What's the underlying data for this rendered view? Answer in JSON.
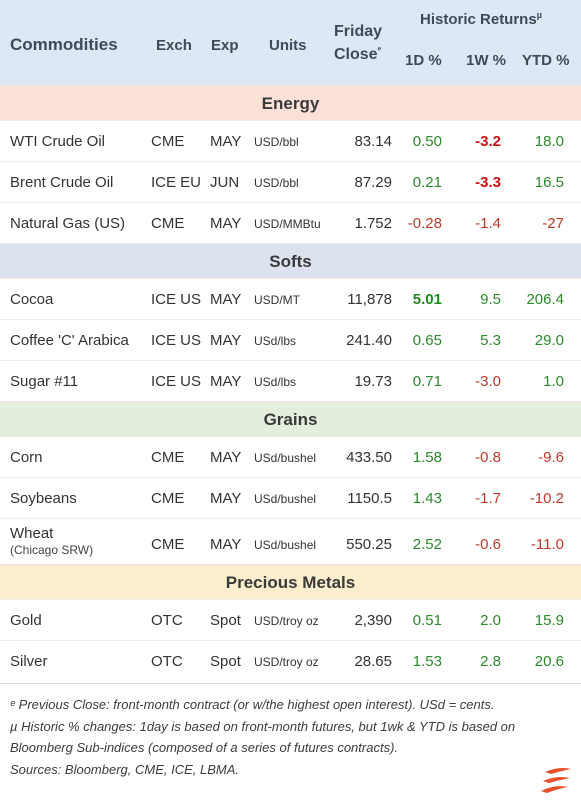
{
  "header": {
    "commodities": "Commodities",
    "exch": "Exch",
    "exp": "Exp",
    "units": "Units",
    "friday_line1": "Friday",
    "friday_line2": "Close",
    "friday_marker": "ᵉ",
    "historic": "Historic Returns",
    "historic_marker": "µ",
    "col_1d": "1D %",
    "col_1w": "1W %",
    "col_ytd": "YTD %"
  },
  "sections": [
    {
      "title": "Energy",
      "rows": [
        {
          "name": "WTI Crude Oil",
          "exch": "CME",
          "exp": "MAY",
          "units": "USD/bbl",
          "close": "83.14",
          "d1": "0.50",
          "w1": "-3.2",
          "ytd": "18.0"
        },
        {
          "name": "Brent Crude Oil",
          "exch": "ICE EU",
          "exp": "JUN",
          "units": "USD/bbl",
          "close": "87.29",
          "d1": "0.21",
          "w1": "-3.3",
          "ytd": "16.5"
        },
        {
          "name": "Natural Gas (US)",
          "exch": "CME",
          "exp": "MAY",
          "units": "USD/MMBtu",
          "close": "1.752",
          "d1": "-0.28",
          "w1": "-1.4",
          "ytd": "-27"
        }
      ]
    },
    {
      "title": "Softs",
      "rows": [
        {
          "name": "Cocoa",
          "exch": "ICE US",
          "exp": "MAY",
          "units": "USD/MT",
          "close": "11,878",
          "d1": "5.01",
          "w1": "9.5",
          "ytd": "206.4"
        },
        {
          "name": "Coffee 'C' Arabica",
          "exch": "ICE US",
          "exp": "MAY",
          "units": "USd/lbs",
          "close": "241.40",
          "d1": "0.65",
          "w1": "5.3",
          "ytd": "29.0"
        },
        {
          "name": "Sugar #11",
          "exch": "ICE US",
          "exp": "MAY",
          "units": "USd/lbs",
          "close": "19.73",
          "d1": "0.71",
          "w1": "-3.0",
          "ytd": "1.0"
        }
      ]
    },
    {
      "title": "Grains",
      "rows": [
        {
          "name": "Corn",
          "exch": "CME",
          "exp": "MAY",
          "units": "USd/bushel",
          "close": "433.50",
          "d1": "1.58",
          "w1": "-0.8",
          "ytd": "-9.6"
        },
        {
          "name": "Soybeans",
          "exch": "CME",
          "exp": "MAY",
          "units": "USd/bushel",
          "close": "1150.5",
          "d1": "1.43",
          "w1": "-1.7",
          "ytd": "-10.2"
        },
        {
          "name": "Wheat",
          "sub": "(Chicago SRW)",
          "exch": "CME",
          "exp": "MAY",
          "units": "USd/bushel",
          "close": "550.25",
          "d1": "2.52",
          "w1": "-0.6",
          "ytd": "-11.0"
        }
      ]
    },
    {
      "title": "Precious Metals",
      "rows": [
        {
          "name": "Gold",
          "exch": "OTC",
          "exp": "Spot",
          "units": "USD/troy oz",
          "close": "2,390",
          "d1": "0.51",
          "w1": "2.0",
          "ytd": "15.9"
        },
        {
          "name": "Silver",
          "exch": "OTC",
          "exp": "Spot",
          "units": "USD/troy oz",
          "close": "28.65",
          "d1": "1.53",
          "w1": "2.8",
          "ytd": "20.6"
        }
      ]
    }
  ],
  "footer": {
    "note1": "ᵉ Previous Close: front-month contract (or w/the highest open interest). USd = cents.",
    "note2": "µ Historic % changes: 1day is based on front-month futures, but 1wk & YTD is based on Bloomberg Sub-indices (composed of a series of futures contracts).",
    "sources": "Sources: Bloomberg, CME, ICE, LBMA."
  },
  "colors": {
    "header_bg": "#dde8f4",
    "energy_bg": "#fce1d9",
    "softs_bg": "#dce2ee",
    "grains_bg": "#e4eedd",
    "metals_bg": "#fbeecd",
    "positive": "#2b8a2b",
    "negative": "#c0392b",
    "logo": "#e8502a"
  },
  "logo_icon": "flame-logo-icon"
}
